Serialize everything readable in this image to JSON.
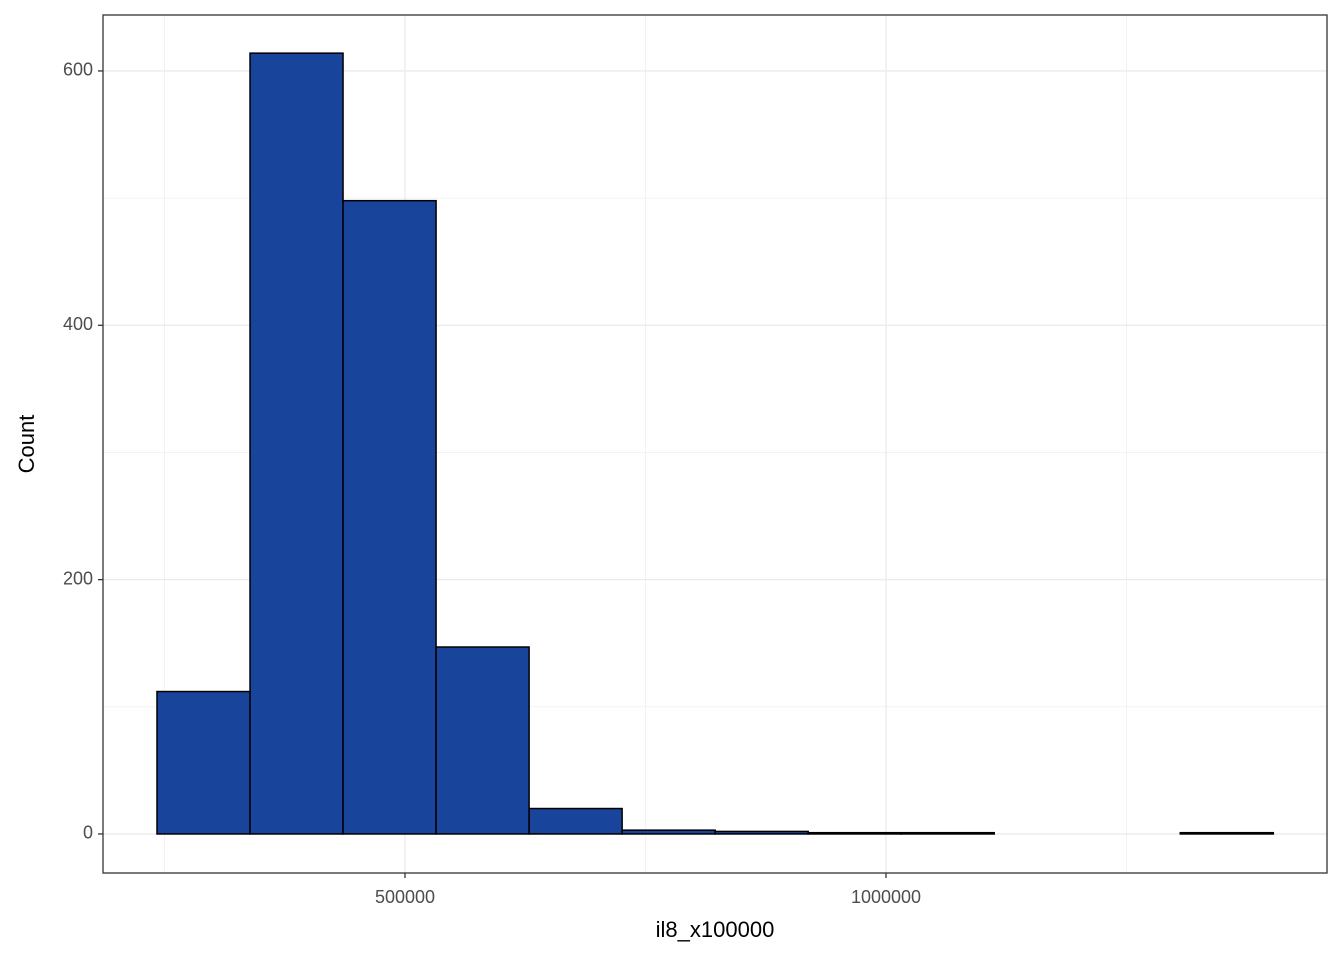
{
  "chart_data": {
    "type": "histogram",
    "x_label": "il8_x100000",
    "y_label": "Count",
    "bins": [
      242200,
      338900,
      435600,
      532300,
      629000,
      725700,
      822400,
      919100,
      1015800,
      1112500,
      1209200,
      1305900,
      1402600
    ],
    "values": [
      112,
      614,
      498,
      147,
      20,
      3,
      2,
      1,
      1,
      0,
      0,
      1
    ],
    "color": "#18449b",
    "edgecolor": "#000000",
    "xlim": [
      186070,
      1458420
    ],
    "ylim": [
      -30.7,
      644
    ],
    "xticks": [
      500000,
      1000000
    ],
    "yticks": [
      0,
      200,
      400,
      600
    ],
    "grid": true
  }
}
